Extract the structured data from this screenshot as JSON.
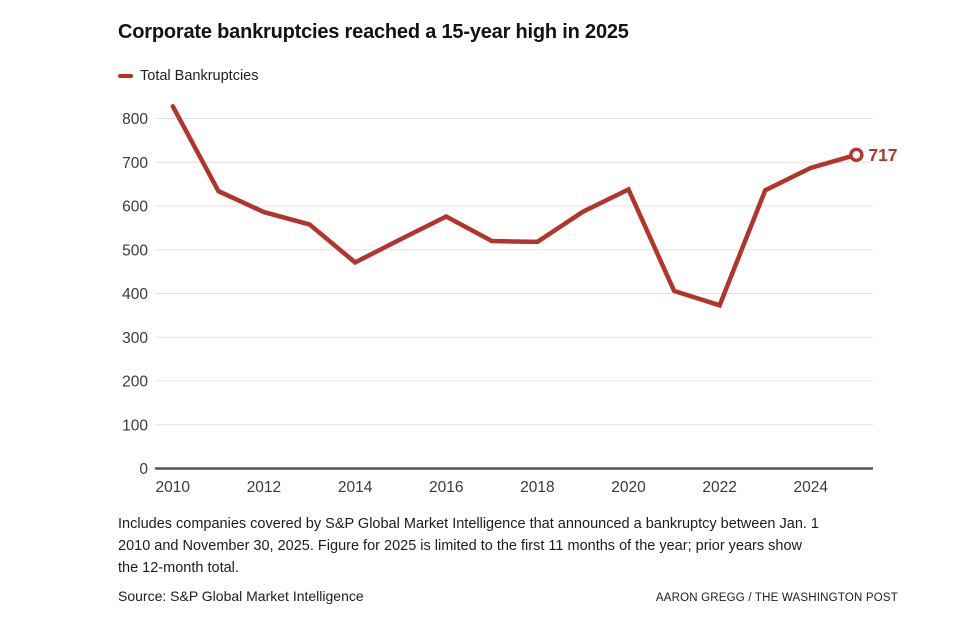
{
  "header": {
    "title": "Corporate bankruptcies reached a 15-year high in 2025"
  },
  "legend": {
    "label": "Total Bankruptcies",
    "swatch_color": "#b2352d"
  },
  "chart_data": {
    "type": "line",
    "title": "Corporate bankruptcies reached a 15-year high in 2025",
    "xlabel": "",
    "ylabel": "",
    "grid": true,
    "legend_position": "top-left",
    "series": [
      {
        "name": "Total Bankruptcies",
        "x": [
          2010,
          2011,
          2012,
          2013,
          2014,
          2015,
          2016,
          2017,
          2018,
          2019,
          2020,
          2021,
          2022,
          2023,
          2024,
          2025
        ],
        "values": [
          828,
          634,
          586,
          558,
          471,
          524,
          576,
          520,
          518,
          587,
          638,
          406,
          373,
          636,
          687,
          717
        ]
      }
    ],
    "end_point_label": "717",
    "xticks": [
      "2010",
      "2012",
      "2014",
      "2016",
      "2018",
      "2020",
      "2022",
      "2024"
    ],
    "yticks": [
      0,
      100,
      200,
      300,
      400,
      500,
      600,
      700,
      800
    ],
    "ylim": [
      0,
      840
    ],
    "xlim": [
      2010,
      2025
    ],
    "colors": {
      "line": "#b2352d",
      "marker_fill": "#ffffff",
      "grid": "#e4e4e4",
      "axis": "#565656",
      "tick_label": "#3a3a3a"
    }
  },
  "footnote": {
    "lines": [
      "Includes companies covered by S&P Global Market Intelligence that announced a bankruptcy between Jan. 1",
      "2010 and November 30, 2025. Figure for 2025 is limited to the first 11 months of the year; prior years show",
      "the 12-month total."
    ]
  },
  "footer": {
    "source": "Source: S&P Global Market Intelligence",
    "credit": "AARON GREGG / THE WASHINGTON POST"
  }
}
